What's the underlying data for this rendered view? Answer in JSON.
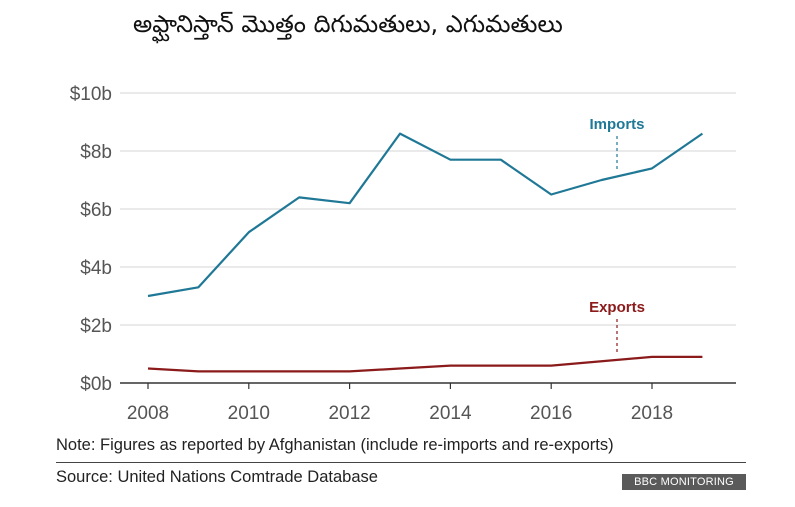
{
  "title": "అఫ్ఘానిస్తాన్ మొత్తం దిగుమతులు, ఎగుమతులు",
  "note": "Note: Figures as reported by Afghanistan (include re-imports and re-exports)",
  "source": "Source: United Nations Comtrade Database",
  "badge": "BBC MONITORING",
  "chart_data": {
    "type": "line",
    "title": "అఫ్ఘానిస్తాన్ మొత్తం దిగుమతులు, ఎగుమతులు",
    "x": [
      2008,
      2009,
      2010,
      2011,
      2012,
      2013,
      2014,
      2015,
      2016,
      2017,
      2018,
      2019
    ],
    "series": [
      {
        "name": "Imports",
        "color": "#1f7896",
        "values": [
          3.0,
          3.3,
          5.2,
          6.4,
          6.2,
          8.6,
          7.7,
          7.7,
          6.5,
          7.0,
          7.4,
          8.6
        ]
      },
      {
        "name": "Exports",
        "color": "#8b1a1a",
        "values": [
          0.5,
          0.4,
          0.4,
          0.4,
          0.4,
          0.5,
          0.6,
          0.6,
          0.6,
          0.75,
          0.9,
          0.9
        ]
      }
    ],
    "xticks": [
      "2008",
      "2010",
      "2012",
      "2014",
      "2016",
      "2018"
    ],
    "yticks": [
      "$0b",
      "$2b",
      "$4b",
      "$6b",
      "$8b",
      "$10b"
    ],
    "ylim": [
      0,
      10
    ],
    "grid": true,
    "legend": "inline labels"
  }
}
